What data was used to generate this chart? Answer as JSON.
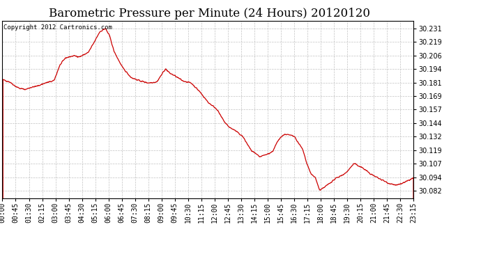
{
  "title": "Barometric Pressure per Minute (24 Hours) 20120120",
  "copyright": "Copyright 2012 Cartronics.com",
  "line_color": "#cc0000",
  "bg_color": "#ffffff",
  "grid_color": "#bbbbbb",
  "yticks": [
    30.082,
    30.094,
    30.107,
    30.119,
    30.132,
    30.144,
    30.157,
    30.169,
    30.181,
    30.194,
    30.206,
    30.219,
    30.231
  ],
  "ylim": [
    30.075,
    30.238
  ],
  "xtick_labels": [
    "00:00",
    "00:45",
    "01:30",
    "02:15",
    "03:00",
    "03:45",
    "04:30",
    "05:15",
    "06:00",
    "06:45",
    "07:30",
    "08:15",
    "09:00",
    "09:45",
    "10:30",
    "11:15",
    "12:00",
    "12:45",
    "13:30",
    "14:15",
    "15:00",
    "15:45",
    "16:30",
    "17:15",
    "18:00",
    "18:45",
    "19:30",
    "20:15",
    "21:00",
    "21:45",
    "22:30",
    "23:15"
  ],
  "title_fontsize": 12,
  "label_fontsize": 7,
  "copyright_fontsize": 6.5,
  "keypoints_x": [
    0,
    25,
    45,
    60,
    80,
    100,
    120,
    150,
    180,
    200,
    220,
    250,
    270,
    300,
    320,
    340,
    360,
    375,
    390,
    420,
    450,
    480,
    510,
    540,
    555,
    570,
    585,
    600,
    630,
    660,
    690,
    720,
    750,
    765,
    780,
    795,
    810,
    840,
    870,
    900,
    930,
    945,
    960,
    975,
    990,
    1005,
    1020,
    1050,
    1065,
    1080,
    1095,
    1110,
    1140,
    1170,
    1200,
    1230,
    1260,
    1290,
    1320,
    1350,
    1380,
    1410,
    1439
  ],
  "keypoints_y": [
    30.184,
    30.182,
    30.178,
    30.176,
    30.175,
    30.177,
    30.178,
    30.181,
    30.183,
    30.197,
    30.204,
    30.206,
    30.205,
    30.209,
    30.218,
    30.228,
    30.231,
    30.224,
    30.21,
    30.195,
    30.186,
    30.183,
    30.181,
    30.182,
    30.188,
    30.194,
    30.19,
    30.188,
    30.183,
    30.181,
    30.173,
    30.163,
    30.157,
    30.15,
    30.144,
    30.14,
    30.138,
    30.132,
    30.119,
    30.113,
    30.116,
    30.118,
    30.126,
    30.132,
    30.134,
    30.133,
    30.132,
    30.12,
    30.107,
    30.097,
    30.094,
    30.082,
    30.088,
    30.094,
    30.098,
    30.107,
    30.103,
    30.097,
    30.093,
    30.089,
    30.087,
    30.09,
    30.094
  ]
}
